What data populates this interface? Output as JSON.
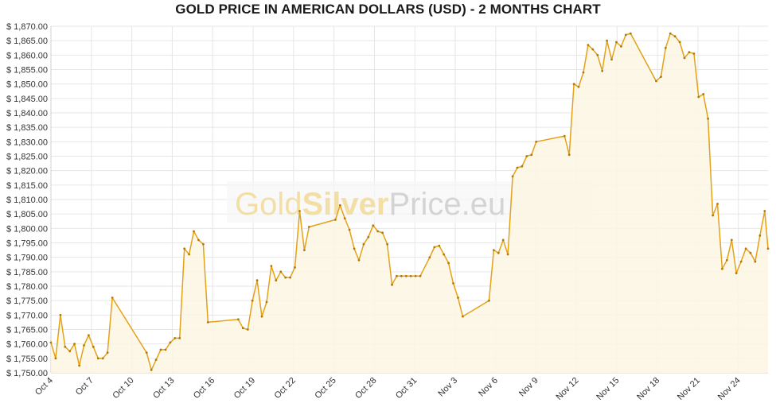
{
  "chart_data": {
    "type": "area",
    "title": "GOLD PRICE IN AMERICAN DOLLARS (USD) - 2 MONTHS CHART",
    "xlabel": "",
    "ylabel": "",
    "ylim": [
      1750,
      1870
    ],
    "y_ticks": [
      "$ 1,750.00",
      "$ 1,755.00",
      "$ 1,760.00",
      "$ 1,765.00",
      "$ 1,770.00",
      "$ 1,775.00",
      "$ 1,780.00",
      "$ 1,785.00",
      "$ 1,790.00",
      "$ 1,795.00",
      "$ 1,800.00",
      "$ 1,805.00",
      "$ 1,810.00",
      "$ 1,815.00",
      "$ 1,820.00",
      "$ 1,825.00",
      "$ 1,830.00",
      "$ 1,835.00",
      "$ 1,840.00",
      "$ 1,845.00",
      "$ 1,850.00",
      "$ 1,855.00",
      "$ 1,860.00",
      "$ 1,865.00",
      "$ 1,870.00"
    ],
    "x_ticks": [
      "Oct 4",
      "Oct 7",
      "Oct 10",
      "Oct 13",
      "Oct 16",
      "Oct 19",
      "Oct 22",
      "Oct 25",
      "Oct 28",
      "Oct 31",
      "Nov 3",
      "Nov 6",
      "Nov 9",
      "Nov 12",
      "Nov 15",
      "Nov 18",
      "Nov 21",
      "Nov 24"
    ],
    "x_range": [
      0,
      53.2
    ],
    "grid": true,
    "legend": "none",
    "watermark": [
      "Gold",
      "Silver",
      "Price.eu"
    ],
    "colors": {
      "line": "#e3a21a",
      "fill": "#fdf6e3",
      "grid": "#e6e6e6",
      "watermark_gold": "#f3dfa6",
      "watermark_silver": "#d4d4d4"
    },
    "series": [
      {
        "x": [
          0,
          0.35,
          0.7,
          1.05,
          1.4,
          1.75,
          2.1,
          2.45,
          2.8,
          3.15,
          3.5,
          3.85,
          4.2,
          4.55,
          7.1,
          7.45,
          7.8,
          8.15,
          8.5,
          8.85,
          9.2,
          9.55,
          9.9,
          10.25,
          10.6,
          10.95,
          11.3,
          11.65,
          13.9,
          14.25,
          14.6,
          14.95,
          15.3,
          15.65,
          16.0,
          16.35,
          16.7,
          17.05,
          17.4,
          17.75,
          18.1,
          18.45,
          18.8,
          19.15,
          21.1,
          21.45,
          21.8,
          22.15,
          22.5,
          22.85,
          23.2,
          23.55,
          23.9,
          24.25,
          24.6,
          24.95,
          25.3,
          25.65,
          26.0,
          26.35,
          26.7,
          27.05,
          27.4,
          28.1,
          28.45,
          28.8,
          29.15,
          29.5,
          29.85,
          30.2,
          30.55,
          32.5,
          32.85,
          33.2,
          33.55,
          33.9,
          34.25,
          34.6,
          34.95,
          35.3,
          35.65,
          36.0,
          38.1,
          38.45,
          38.8,
          39.15,
          39.5,
          39.85,
          40.2,
          40.55,
          40.9,
          41.25,
          41.6,
          41.95,
          42.3,
          42.65,
          43.0,
          44.9,
          45.25,
          45.6,
          45.95,
          46.3,
          46.65,
          47.0,
          47.35,
          47.7,
          48.05,
          48.4,
          48.75,
          49.1,
          49.45,
          49.8,
          50.15,
          50.5,
          50.85,
          51.2,
          51.55,
          51.9,
          52.25,
          52.6,
          52.95,
          53.2
        ],
        "values": [
          1760.5,
          1755,
          1770,
          1759,
          1757.5,
          1760,
          1752.5,
          1759.5,
          1763,
          1759,
          1755,
          1755,
          1757,
          1776,
          1757,
          1751,
          1754.5,
          1758,
          1758,
          1760.5,
          1762,
          1762,
          1793,
          1791,
          1799,
          1796,
          1794.5,
          1767.5,
          1768.5,
          1765.5,
          1765,
          1775,
          1782,
          1769.5,
          1774.5,
          1787,
          1782,
          1785,
          1783,
          1783,
          1786.5,
          1806,
          1792.5,
          1800.5,
          1803,
          1808,
          1803.5,
          1799.5,
          1793,
          1789,
          1794.5,
          1797,
          1801,
          1799,
          1798.5,
          1794.5,
          1780.5,
          1783.5,
          1783.5,
          1783.5,
          1783.5,
          1783.5,
          1783.5,
          1790,
          1793.5,
          1794,
          1791,
          1788,
          1781,
          1776,
          1769.5,
          1775,
          1792.5,
          1791.5,
          1796,
          1791,
          1818,
          1821,
          1821.5,
          1825,
          1825.5,
          1830,
          1832,
          1825.5,
          1850,
          1849,
          1854,
          1863.5,
          1862,
          1860,
          1854.5,
          1865,
          1858.5,
          1864.5,
          1863,
          1867,
          1867.5,
          1851,
          1852.5,
          1862.5,
          1867.5,
          1866.5,
          1864.5,
          1859,
          1861,
          1860.5,
          1845.5,
          1846.5,
          1838,
          1804.5,
          1808.5,
          1786,
          1789,
          1796,
          1784.5,
          1788.5,
          1793,
          1791.5,
          1788.5,
          1797.5,
          1806,
          1793
        ]
      }
    ]
  }
}
